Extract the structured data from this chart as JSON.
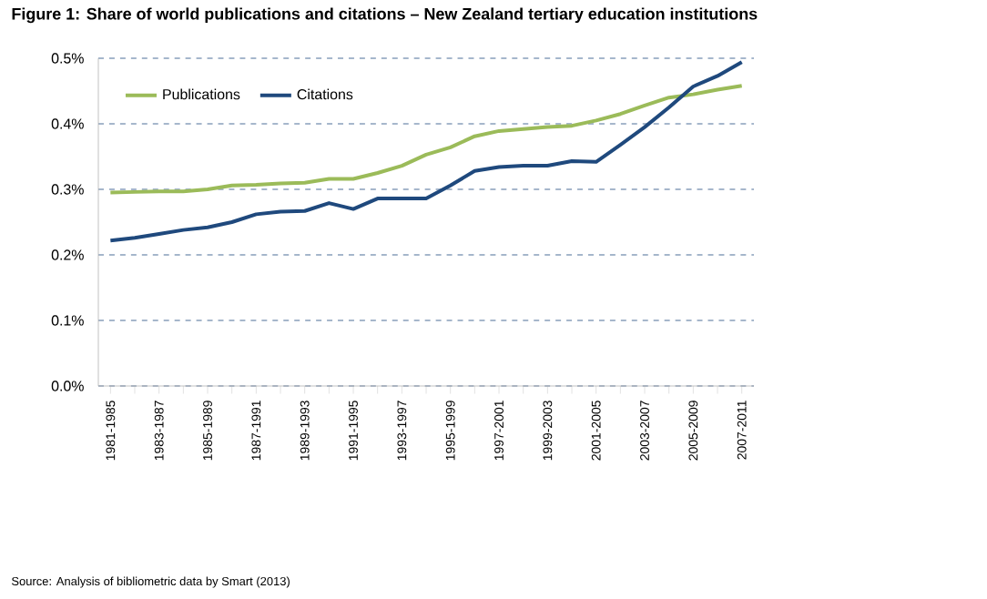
{
  "chart_data": {
    "type": "line",
    "title": "Figure 1: Share of world publications and citations – New Zealand tertiary education institutions",
    "categories": [
      "1981-1985",
      null,
      "1983-1987",
      null,
      "1985-1989",
      null,
      "1987-1991",
      null,
      "1989-1993",
      null,
      "1991-1995",
      null,
      "1993-1997",
      null,
      "1995-1999",
      null,
      "1997-2001",
      null,
      "1999-2003",
      null,
      "2001-2005",
      null,
      "2003-2007",
      null,
      "2005-2009",
      null,
      "2007-2011"
    ],
    "series": [
      {
        "name": "Publications",
        "color": "#9bbb59",
        "values": [
          0.295,
          0.296,
          0.297,
          0.297,
          0.3,
          0.306,
          0.307,
          0.309,
          0.31,
          0.316,
          0.316,
          0.325,
          0.336,
          0.353,
          0.364,
          0.381,
          0.389,
          0.392,
          0.395,
          0.397,
          0.405,
          0.415,
          0.428,
          0.44,
          0.445,
          0.452,
          0.458
        ]
      },
      {
        "name": "Citations",
        "color": "#1f497d",
        "values": [
          0.222,
          0.226,
          0.232,
          0.238,
          0.242,
          0.25,
          0.262,
          0.266,
          0.267,
          0.279,
          0.27,
          0.286,
          0.286,
          0.286,
          0.306,
          0.328,
          0.334,
          0.336,
          0.336,
          0.343,
          0.342,
          0.368,
          0.395,
          0.425,
          0.457,
          0.473,
          0.494
        ]
      }
    ],
    "ylim": [
      0,
      0.5
    ],
    "yticks": [
      {
        "value": 0,
        "label": "0.0%"
      },
      {
        "value": 0.1,
        "label": "0.1%"
      },
      {
        "value": 0.2,
        "label": "0.2%"
      },
      {
        "value": 0.3,
        "label": "0.3%"
      },
      {
        "value": 0.4,
        "label": "0.4%"
      },
      {
        "value": 0.5,
        "label": "0.5%"
      }
    ],
    "grid": "y",
    "legend": "top left",
    "marker": "none",
    "line_style": "solid",
    "annotations": [
      "Source: Analysis of bibliometric data by Smart (2013)"
    ]
  }
}
